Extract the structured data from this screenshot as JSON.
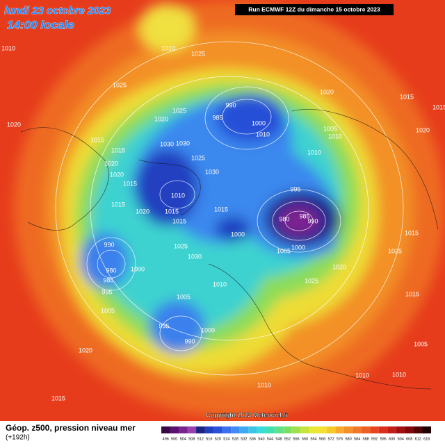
{
  "header": {
    "title": "lundi 23 octobre 2023",
    "subtitle": "14:00 locale",
    "run": "Run ECMWF 12Z du dimanche 15 octobre 2023"
  },
  "isobar_labels": [
    "1010",
    "1010",
    "1025",
    "1025",
    "1020",
    "1025",
    "1020",
    "990",
    "985",
    "1000",
    "1010",
    "1015",
    "1005",
    "1020",
    "1010",
    "1015",
    "1030",
    "1030",
    "1015",
    "1025",
    "1020",
    "1010",
    "1030",
    "1020",
    "1015",
    "1010",
    "995",
    "1015",
    "1020",
    "1015",
    "1015",
    "985",
    "980",
    "990",
    "1015",
    "1015",
    "1000",
    "990",
    "1025",
    "1005",
    "1000",
    "1025",
    "1030",
    "980",
    "1000",
    "1020",
    "985",
    "1025",
    "1010",
    "995",
    "1015",
    "1005",
    "1005",
    "995",
    "1000",
    "990",
    "1005",
    "1020",
    "1010",
    "1010",
    "1015",
    "1010",
    "1020",
    "1015"
  ],
  "footer": {
    "title": "Géop. z500, pression niveau mer",
    "lead": "(+192h)",
    "copyright": "Copyright 2023 Meteociel.fr"
  },
  "scale": {
    "ticks": [
      496,
      500,
      504,
      508,
      512,
      516,
      520,
      524,
      528,
      532,
      536,
      540,
      544,
      548,
      552,
      556,
      560,
      564,
      568,
      572,
      576,
      580,
      584,
      588,
      592,
      596,
      600,
      604,
      608,
      612,
      616
    ],
    "colors": [
      "#3a0848",
      "#5a1270",
      "#7a2490",
      "#9a40ae",
      "#1a2380",
      "#1f3fbf",
      "#2850d8",
      "#3c6ef0",
      "#3f8cf5",
      "#40a8f0",
      "#3cc4e8",
      "#39dcd8",
      "#40e0b0",
      "#60e08a",
      "#7ae064",
      "#9ee04e",
      "#c8e43c",
      "#e8e834",
      "#f5e030",
      "#f8c828",
      "#f8a82a",
      "#f4902a",
      "#f07828",
      "#ec6024",
      "#e84420",
      "#d8301c",
      "#c02018",
      "#a01010",
      "#800808",
      "#500404",
      "#200000"
    ]
  }
}
